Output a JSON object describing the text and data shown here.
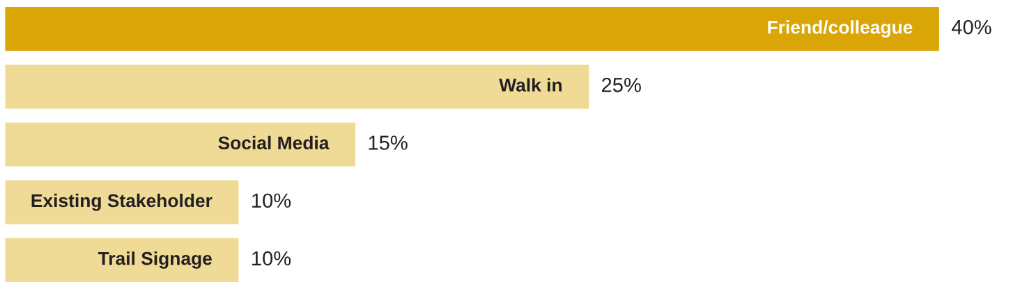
{
  "chart_data": {
    "type": "bar",
    "orientation": "horizontal",
    "categories": [
      "Friend/colleague",
      "Walk in",
      "Social Media",
      "Existing Stakeholder",
      "Trail Signage"
    ],
    "values": [
      40,
      25,
      15,
      10,
      10
    ],
    "colors": [
      "#daa506",
      "#efdb95",
      "#efdb95",
      "#efdb95",
      "#efdb95"
    ],
    "value_labels": [
      "40%",
      "25%",
      "15%",
      "10%",
      "10%"
    ]
  }
}
